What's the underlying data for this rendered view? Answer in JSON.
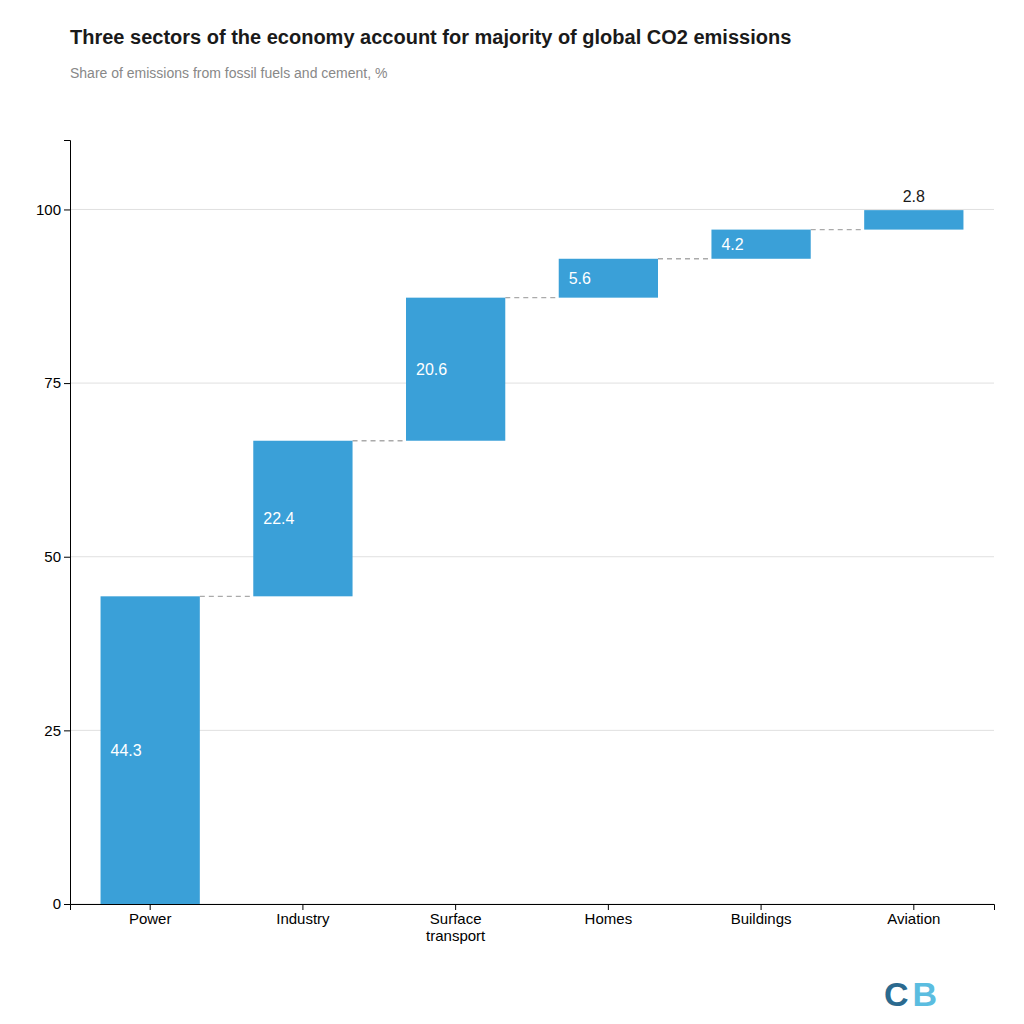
{
  "chart_data": {
    "type": "waterfall",
    "title": "Three sectors of the economy account for majority of global CO2 emissions",
    "subtitle": "Share of emissions from fossil fuels and cement, %",
    "categories": [
      "Power",
      "Industry",
      "Surface\ntransport",
      "Homes",
      "Buildings",
      "Aviation"
    ],
    "values": [
      44.3,
      22.4,
      20.6,
      5.6,
      4.2,
      2.8
    ],
    "color": "#3aa0d8",
    "ylim": [
      0,
      110
    ],
    "yticks": [
      0,
      25,
      50,
      75,
      100
    ],
    "grid": true,
    "data_labels": true,
    "annotations": [
      {
        "text": "C",
        "color": "#2b6a8f"
      },
      {
        "text": "B",
        "color": "#5bbde0"
      }
    ]
  }
}
